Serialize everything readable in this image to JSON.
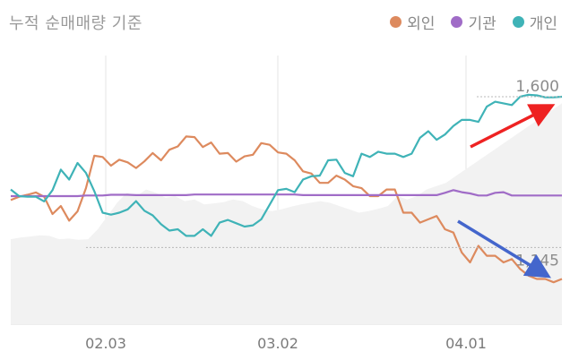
{
  "title": "누적 순매매량 기준",
  "legend": [
    {
      "name": "외인",
      "color": "#dd8a5e"
    },
    {
      "name": "기관",
      "color": "#a06cc7"
    },
    {
      "name": "개인",
      "color": "#3fb3b7"
    }
  ],
  "chart_data": {
    "type": "line",
    "title": "누적 순매매량 기준",
    "xlabel": "",
    "ylabel": "",
    "x_ticks": [
      "02.03",
      "03.02",
      "04.01"
    ],
    "grid": "vertical",
    "legend_position": "top-right",
    "annotations": [
      {
        "label": "1,600",
        "value": 1600
      },
      {
        "label": "1,145",
        "value": 1145
      }
    ],
    "arrows": [
      {
        "color": "#ee2222",
        "direction": "up"
      },
      {
        "color": "#4466cc",
        "direction": "down"
      }
    ],
    "area_series": {
      "color": "#f2f2f2",
      "values": [
        1170,
        1175,
        1178,
        1182,
        1180,
        1170,
        1172,
        1168,
        1170,
        1200,
        1240,
        1280,
        1310,
        1300,
        1320,
        1310,
        1295,
        1300,
        1285,
        1290,
        1275,
        1278,
        1282,
        1290,
        1285,
        1270,
        1260,
        1255,
        1260,
        1268,
        1275,
        1280,
        1285,
        1280,
        1270,
        1260,
        1250,
        1255,
        1262,
        1270,
        1300,
        1290,
        1300,
        1320,
        1330,
        1340,
        1360,
        1380,
        1400,
        1420,
        1440,
        1460,
        1480,
        1500,
        1520,
        1540,
        1560,
        1580
      ]
    },
    "series": [
      {
        "name": "외인",
        "color": "#dd8a5e",
        "values": [
          1288,
          1298,
          1304,
          1311,
          1298,
          1246,
          1270,
          1226,
          1254,
          1324,
          1422,
          1418,
          1392,
          1410,
          1402,
          1385,
          1405,
          1430,
          1408,
          1440,
          1450,
          1480,
          1478,
          1448,
          1462,
          1428,
          1430,
          1404,
          1420,
          1425,
          1460,
          1455,
          1432,
          1428,
          1408,
          1375,
          1368,
          1340,
          1340,
          1362,
          1350,
          1330,
          1324,
          1300,
          1300,
          1320,
          1320,
          1250,
          1250,
          1220,
          1230,
          1240,
          1200,
          1190,
          1130,
          1100,
          1150,
          1120,
          1120,
          1100,
          1110,
          1080,
          1060,
          1050,
          1050,
          1040,
          1050
        ]
      },
      {
        "name": "기관",
        "color": "#a06cc7",
        "values": [
          1300,
          1300,
          1300,
          1300,
          1300,
          1300,
          1300,
          1300,
          1300,
          1302,
          1302,
          1302,
          1304,
          1304,
          1304,
          1303,
          1303,
          1303,
          1303,
          1303,
          1303,
          1303,
          1305,
          1305,
          1305,
          1305,
          1305,
          1305,
          1305,
          1305,
          1305,
          1305,
          1305,
          1305,
          1305,
          1303,
          1303,
          1303,
          1303,
          1303,
          1303,
          1303,
          1303,
          1303,
          1303,
          1303,
          1303,
          1303,
          1303,
          1303,
          1303,
          1303,
          1310,
          1318,
          1312,
          1308,
          1302,
          1302,
          1310,
          1312,
          1302,
          1302,
          1302,
          1302,
          1302,
          1302,
          1302
        ]
      },
      {
        "name": "개인",
        "color": "#3fb3b7",
        "values": [
          1320,
          1300,
          1298,
          1298,
          1284,
          1318,
          1380,
          1350,
          1400,
          1370,
          1315,
          1250,
          1244,
          1250,
          1260,
          1285,
          1256,
          1242,
          1215,
          1196,
          1200,
          1180,
          1180,
          1200,
          1180,
          1220,
          1228,
          1218,
          1208,
          1212,
          1230,
          1274,
          1318,
          1322,
          1312,
          1350,
          1360,
          1362,
          1408,
          1410,
          1370,
          1360,
          1428,
          1418,
          1434,
          1428,
          1428,
          1418,
          1428,
          1476,
          1496,
          1470,
          1486,
          1512,
          1530,
          1530,
          1524,
          1570,
          1585,
          1580,
          1575,
          1600,
          1606,
          1604,
          1598,
          1598,
          1600
        ]
      }
    ]
  }
}
